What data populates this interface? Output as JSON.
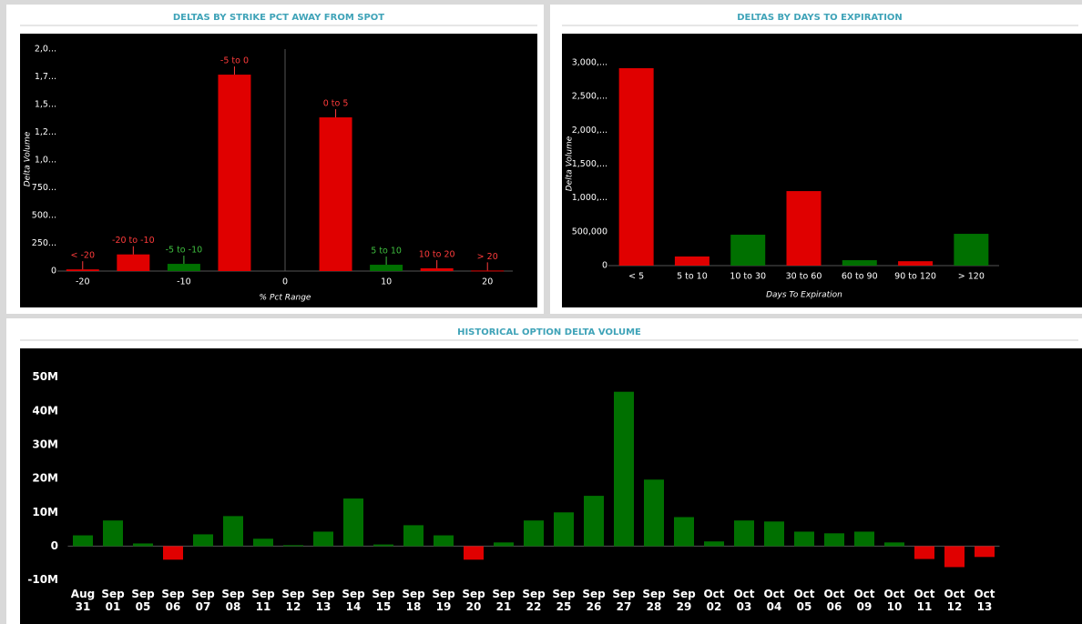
{
  "chart_data": [
    {
      "type": "bar",
      "title": "DELTAS BY STRIKE PCT AWAY FROM SPOT",
      "x_label": "% Pct Range",
      "y_label": "Delta Volume",
      "categories": [
        "< -20",
        "-20 to -10",
        "-5 to -10",
        "-5 to 0",
        "0 to 5",
        "5 to 10",
        "10 to 20",
        "> 20"
      ],
      "x": [
        -20,
        -15,
        -10,
        -5,
        5,
        10,
        15,
        20
      ],
      "values": [
        15000,
        150000,
        65000,
        1770000,
        1385000,
        57000,
        25000,
        5000
      ],
      "colors": [
        "#e00000",
        "#e00000",
        "#007000",
        "#e00000",
        "#e00000",
        "#007000",
        "#e00000",
        "#e00000"
      ],
      "label_colors": [
        "#ff3b3b",
        "#ff3b3b",
        "#3fbf3f",
        "#ff3b3b",
        "#ff3b3b",
        "#3fbf3f",
        "#ff3b3b",
        "#ff3b3b"
      ],
      "xlim": [
        -22.5,
        22.5
      ],
      "xticks": [
        -20,
        -10,
        0,
        10,
        20
      ],
      "ylim": [
        0,
        2000000
      ],
      "yticks": [
        0,
        {
          "value": 250000,
          "label": "250..."
        },
        {
          "value": 500000,
          "label": "500..."
        },
        {
          "value": 750000,
          "label": "750..."
        },
        {
          "value": 1000000,
          "label": "1,0..."
        },
        {
          "value": 1250000,
          "label": "1,2..."
        },
        {
          "value": 1500000,
          "label": "1,5..."
        },
        {
          "value": 1750000,
          "label": "1,7..."
        },
        {
          "value": 2000000,
          "label": "2,0..."
        }
      ],
      "grid": false
    },
    {
      "type": "bar",
      "title": "DELTAS BY DAYS TO EXPIRATION",
      "x_label": "Days To Expiration",
      "y_label": "Delta Volume",
      "categories": [
        "< 5",
        "5 to 10",
        "10 to 30",
        "30 to 60",
        "60 to 90",
        "90 to 120",
        "> 120"
      ],
      "values": [
        2920000,
        135000,
        457000,
        1102000,
        80000,
        65000,
        470000
      ],
      "colors": [
        "#e00000",
        "#e00000",
        "#007000",
        "#e00000",
        "#007000",
        "#e00000",
        "#007000"
      ],
      "ylim": [
        0,
        3000000
      ],
      "yticks": [
        0,
        {
          "value": 500000,
          "label": "500,000"
        },
        {
          "value": 1000000,
          "label": "1,000,..."
        },
        {
          "value": 1500000,
          "label": "1,500,..."
        },
        {
          "value": 2000000,
          "label": "2,000,..."
        },
        {
          "value": 2500000,
          "label": "2,500,..."
        },
        {
          "value": 3000000,
          "label": "3,000,..."
        }
      ],
      "grid": false
    },
    {
      "type": "bar",
      "title": "HISTORICAL OPTION DELTA VOLUME",
      "categories": [
        "Aug 31",
        "Sep 01",
        "Sep 05",
        "Sep 06",
        "Sep 07",
        "Sep 08",
        "Sep 11",
        "Sep 12",
        "Sep 13",
        "Sep 14",
        "Sep 15",
        "Sep 18",
        "Sep 19",
        "Sep 20",
        "Sep 21",
        "Sep 22",
        "Sep 25",
        "Sep 26",
        "Sep 27",
        "Sep 28",
        "Sep 29",
        "Oct 02",
        "Oct 03",
        "Oct 04",
        "Oct 05",
        "Oct 06",
        "Oct 09",
        "Oct 10",
        "Oct 11",
        "Oct 12",
        "Oct 13"
      ],
      "values": [
        3200000,
        7600000,
        800000,
        -4000000,
        3500000,
        8900000,
        2200000,
        300000,
        4300000,
        14100000,
        500000,
        6200000,
        3200000,
        -4000000,
        1100000,
        7600000,
        10000000,
        14900000,
        45700000,
        19700000,
        8600000,
        1400000,
        7600000,
        7300000,
        4300000,
        3800000,
        4300000,
        1100000,
        -3800000,
        -6200000,
        -3200000
      ],
      "colors": [
        "#007000",
        "#007000",
        "#007000",
        "#e00000",
        "#007000",
        "#007000",
        "#007000",
        "#007000",
        "#007000",
        "#007000",
        "#007000",
        "#007000",
        "#007000",
        "#e00000",
        "#007000",
        "#007000",
        "#007000",
        "#007000",
        "#007000",
        "#007000",
        "#007000",
        "#007000",
        "#007000",
        "#007000",
        "#007000",
        "#007000",
        "#007000",
        "#007000",
        "#e00000",
        "#e00000",
        "#e00000"
      ],
      "ylim": [
        -12000000,
        58000000
      ],
      "yticks": [
        {
          "value": -10000000,
          "label": "-10M"
        },
        0,
        {
          "value": 10000000,
          "label": "10M"
        },
        {
          "value": 20000000,
          "label": "20M"
        },
        {
          "value": 30000000,
          "label": "30M"
        },
        {
          "value": 40000000,
          "label": "40M"
        },
        {
          "value": 50000000,
          "label": "50M"
        }
      ],
      "grid": false
    }
  ]
}
